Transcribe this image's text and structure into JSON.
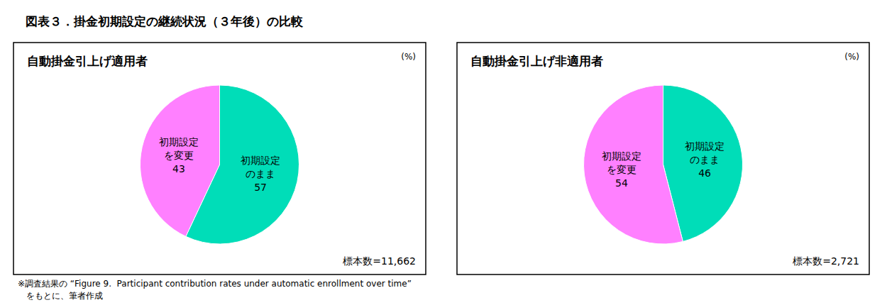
{
  "title": "図表３．掛金初期設定の継続状況（３年後）の比較",
  "annotations": [
    "※調査結果の “Figure 9.  Participant contribution rates under automatic enrollment over time”",
    "　をもとに、筆者作成"
  ],
  "chart_data": [
    {
      "type": "pie",
      "title": "自動掛金引上げ適用者",
      "annotations": [
        "(%)",
        "標本数=11,662"
      ],
      "categories": [
        "初期設定\nのまま",
        "初期設定\nを変更"
      ],
      "values": [
        57,
        43
      ],
      "colors": [
        "#00DDB8",
        "#FF80FF"
      ],
      "data_labels": true,
      "legend": false
    },
    {
      "type": "pie",
      "title": "自動掛金引上げ非適用者",
      "annotations": [
        "(%)",
        "標本数=2,721"
      ],
      "categories": [
        "初期設定\nのまま",
        "初期設定\nを変更"
      ],
      "values": [
        46,
        54
      ],
      "colors": [
        "#00DDB8",
        "#FF80FF"
      ],
      "data_labels": true,
      "legend": false
    }
  ]
}
